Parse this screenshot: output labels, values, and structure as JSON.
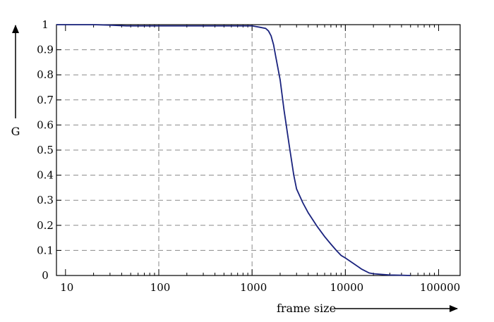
{
  "chart_data": {
    "type": "line",
    "xscale": "log",
    "xlabel": "frame size",
    "ylabel": "G",
    "xlim": [
      8,
      170000
    ],
    "ylim": [
      0,
      1
    ],
    "grid": true,
    "xticks": [
      10,
      100,
      1000,
      10000,
      100000
    ],
    "xtick_labels": [
      "10",
      "100",
      "1000",
      "10000",
      "100000"
    ],
    "yticks": [
      0,
      0.1,
      0.2,
      0.3,
      0.4,
      0.5,
      0.6,
      0.7,
      0.8,
      0.9,
      1
    ],
    "ytick_labels": [
      "0",
      "0.1",
      "0.2",
      "0.3",
      "0.4",
      "0.5",
      "0.6",
      "0.7",
      "0.8",
      "0.9",
      "1"
    ],
    "series": [
      {
        "color": "#1a237e",
        "x": [
          8,
          20,
          30,
          45,
          100,
          500,
          1000,
          1200,
          1400,
          1500,
          1600,
          1700,
          1800,
          2000,
          2200,
          2500,
          2800,
          3000,
          3500,
          4000,
          5000,
          6000,
          7000,
          8000,
          9000,
          10000,
          12000,
          15000,
          18000,
          20000,
          25000,
          30000,
          40000,
          50000
        ],
        "y": [
          1.0,
          1.0,
          0.998,
          0.995,
          0.995,
          0.995,
          0.995,
          0.99,
          0.985,
          0.975,
          0.955,
          0.92,
          0.87,
          0.78,
          0.66,
          0.52,
          0.4,
          0.345,
          0.29,
          0.25,
          0.195,
          0.155,
          0.125,
          0.1,
          0.08,
          0.07,
          0.05,
          0.025,
          0.01,
          0.007,
          0.004,
          0.002,
          0.001,
          0.0
        ]
      }
    ]
  }
}
